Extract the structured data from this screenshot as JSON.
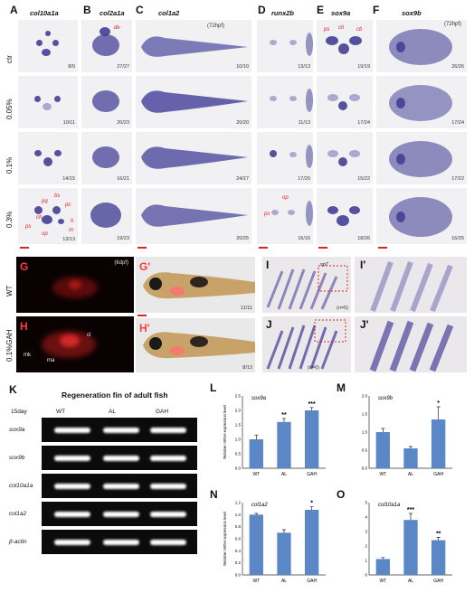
{
  "panels": {
    "A": {
      "letter": "A",
      "gene": "col10a1a",
      "counts": [
        "8/9",
        "10/11",
        "14/15",
        "13/13"
      ]
    },
    "B": {
      "letter": "B",
      "gene": "col2a1a",
      "counts": [
        "27/27",
        "20/23",
        "16/21",
        "19/23"
      ],
      "annot": "de"
    },
    "C": {
      "letter": "C",
      "gene": "col1a2",
      "counts": [
        "10/10",
        "20/20",
        "24/27",
        "20/25"
      ],
      "stage": "(72hpf)"
    },
    "D": {
      "letter": "D",
      "gene": "runx2b",
      "counts": [
        "13/13",
        "11/13",
        "17/20",
        "16/16"
      ]
    },
    "E": {
      "letter": "E",
      "gene": "sox9a",
      "counts": [
        "19/19",
        "17/24",
        "15/22",
        "18/26"
      ],
      "annot": [
        "ps",
        "ch",
        "cb"
      ]
    },
    "F": {
      "letter": "F",
      "gene": "sox9b",
      "counts": [
        "26/26",
        "17/24",
        "17/22",
        "16/25"
      ],
      "stage": "(72hpf)"
    }
  },
  "rows": [
    "ctr",
    "0.05%",
    "0.1%",
    "0.3%"
  ],
  "cart_labels": [
    "bs",
    "pq",
    "pc",
    "ch",
    "ps",
    "op",
    "m",
    "h"
  ],
  "cart_labels_d": [
    "op",
    "ps"
  ],
  "middle": {
    "G": {
      "letter": "G",
      "stage": "(6dpf)",
      "row": "WT"
    },
    "H": {
      "letter": "H",
      "row": "0.1%GAH",
      "labels": [
        "cl",
        "mk",
        "ma"
      ]
    },
    "Gp": {
      "letter": "G'",
      "count": "11/11"
    },
    "Hp": {
      "letter": "H'",
      "count": "8/13"
    },
    "I": {
      "letter": "I",
      "annot": "sp7",
      "n": "(n=5)"
    },
    "Ip": {
      "letter": "I'"
    },
    "J": {
      "letter": "J",
      "n": "(n=6)"
    },
    "Jp": {
      "letter": "J'"
    }
  },
  "gel": {
    "letter": "K",
    "title": "Regeneration fin of adult fish",
    "day": "15day",
    "lanes": [
      "WT",
      "AL",
      "GAH"
    ],
    "genes": [
      "sox9a",
      "sox9b",
      "col10a1a",
      "col1a2",
      "β-actin"
    ]
  },
  "chart_data": [
    {
      "letter": "L",
      "type": "bar",
      "title": "sox9a",
      "ylabel": "Relative mRNA expression level",
      "categories": [
        "WT",
        "AL",
        "GAH"
      ],
      "values": [
        1.0,
        1.6,
        2.0
      ],
      "errors": [
        0.15,
        0.12,
        0.1
      ],
      "sig": [
        "",
        "**",
        "***"
      ],
      "ylim": [
        0,
        2.5
      ],
      "yticks": [
        "0.0",
        "0.5",
        "1.0",
        "1.5",
        "2.0",
        "2.5"
      ],
      "color": "#5b87c6"
    },
    {
      "letter": "M",
      "type": "bar",
      "title": "sox9b",
      "ylabel": "",
      "categories": [
        "WT",
        "AL",
        "GAH"
      ],
      "values": [
        1.0,
        0.55,
        1.35
      ],
      "errors": [
        0.1,
        0.05,
        0.35
      ],
      "sig": [
        "",
        "",
        "*"
      ],
      "ylim": [
        0,
        2.0
      ],
      "yticks": [
        "0.0",
        "0.5",
        "1.0",
        "1.5",
        "2.0"
      ],
      "color": "#5b87c6"
    },
    {
      "letter": "N",
      "type": "bar",
      "title": "col1a2",
      "ylabel": "Relative mRNA expression level",
      "categories": [
        "WT",
        "AL",
        "GAH"
      ],
      "values": [
        1.0,
        0.7,
        1.08
      ],
      "errors": [
        0.02,
        0.05,
        0.05
      ],
      "sig": [
        "",
        "",
        "*"
      ],
      "ylim": [
        0,
        1.2
      ],
      "yticks": [
        "0.0",
        "0.2",
        "0.4",
        "0.6",
        "0.8",
        "1.0",
        "1.2"
      ],
      "color": "#5b87c6"
    },
    {
      "letter": "O",
      "type": "bar",
      "title": "col10a1a",
      "ylabel": "",
      "categories": [
        "WT",
        "AL",
        "GAH"
      ],
      "values": [
        1.1,
        3.8,
        2.4
      ],
      "errors": [
        0.1,
        0.45,
        0.2
      ],
      "sig": [
        "",
        "***",
        "**"
      ],
      "ylim": [
        0,
        5
      ],
      "yticks": [
        "0",
        "1",
        "2",
        "3",
        "4",
        "5"
      ],
      "color": "#5b87c6"
    }
  ]
}
